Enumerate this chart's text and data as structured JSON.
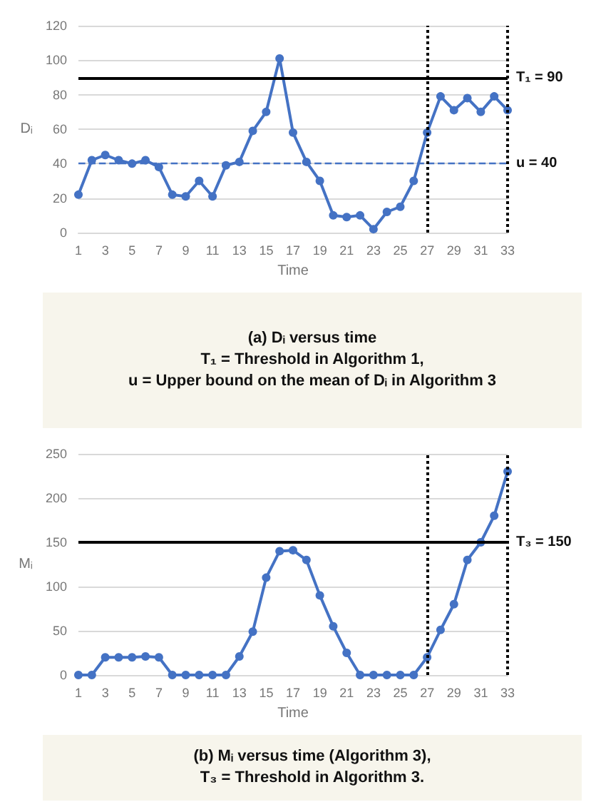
{
  "chart_data": [
    {
      "type": "line",
      "xlabel": "Time",
      "ylabel": "Dᵢ",
      "x": [
        1,
        2,
        3,
        4,
        5,
        6,
        7,
        8,
        9,
        10,
        11,
        12,
        13,
        14,
        15,
        16,
        17,
        18,
        19,
        20,
        21,
        22,
        23,
        24,
        25,
        26,
        27,
        28,
        29,
        30,
        31,
        32,
        33
      ],
      "xlim": [
        1,
        33
      ],
      "xticks": [
        1,
        3,
        5,
        7,
        9,
        11,
        13,
        15,
        17,
        19,
        21,
        23,
        25,
        27,
        29,
        31,
        33
      ],
      "series": [
        {
          "color": "#4472c4",
          "values": [
            22,
            42,
            45,
            42,
            40,
            42,
            38,
            22,
            21,
            30,
            21,
            39,
            41,
            59,
            70,
            101,
            58,
            41,
            30,
            10,
            9,
            10,
            2,
            12,
            15,
            30,
            58,
            79,
            71,
            78,
            70,
            79,
            71
          ]
        }
      ],
      "ylim": [
        0,
        120
      ],
      "yticks": [
        0,
        20,
        40,
        60,
        80,
        100,
        120
      ],
      "grid": "y",
      "marker": "circle",
      "line_style": "solid",
      "ref_lines": [
        {
          "axis": "y",
          "value": 90,
          "label": "T₁ = 90",
          "color": "#000000",
          "line_style": "solid"
        },
        {
          "axis": "y",
          "value": 40,
          "label": "u = 40",
          "color": "#4472c4",
          "line_style": "dashed"
        },
        {
          "axis": "x",
          "value": 27,
          "label": null,
          "color": "#000000",
          "line_style": "dotted"
        },
        {
          "axis": "x",
          "value": 33,
          "label": null,
          "color": "#000000",
          "line_style": "dotted"
        }
      ],
      "annotations": [
        "(a) Dᵢ versus time",
        "T₁ = Threshold in Algorithm 1,",
        "u = Upper bound on the mean of Dᵢ in Algorithm 3"
      ]
    },
    {
      "type": "line",
      "xlabel": "Time",
      "ylabel": "Mᵢ",
      "x": [
        1,
        2,
        3,
        4,
        5,
        6,
        7,
        8,
        9,
        10,
        11,
        12,
        13,
        14,
        15,
        16,
        17,
        18,
        19,
        20,
        21,
        22,
        23,
        24,
        25,
        26,
        27,
        28,
        29,
        30,
        31,
        32,
        33
      ],
      "xlim": [
        1,
        33
      ],
      "xticks": [
        1,
        3,
        5,
        7,
        9,
        11,
        13,
        15,
        17,
        19,
        21,
        23,
        25,
        27,
        29,
        31,
        33
      ],
      "series": [
        {
          "color": "#4472c4",
          "values": [
            0,
            0,
            20,
            20,
            20,
            21,
            20,
            0,
            0,
            0,
            0,
            0,
            21,
            49,
            110,
            140,
            141,
            130,
            90,
            55,
            25,
            0,
            0,
            0,
            0,
            0,
            20,
            51,
            80,
            130,
            150,
            180,
            230
          ]
        }
      ],
      "ylim": [
        0,
        250
      ],
      "yticks": [
        0,
        50,
        100,
        150,
        200,
        250
      ],
      "grid": "y",
      "marker": "circle",
      "line_style": "solid",
      "ref_lines": [
        {
          "axis": "y",
          "value": 150,
          "label": "T₃ = 150",
          "color": "#000000",
          "line_style": "solid"
        },
        {
          "axis": "x",
          "value": 27,
          "label": null,
          "color": "#000000",
          "line_style": "dotted"
        },
        {
          "axis": "x",
          "value": 33,
          "label": null,
          "color": "#000000",
          "line_style": "dotted"
        }
      ],
      "annotations": [
        "(b) Mᵢ versus time (Algorithm 3),",
        "T₃ = Threshold in Algorithm 3."
      ]
    }
  ]
}
